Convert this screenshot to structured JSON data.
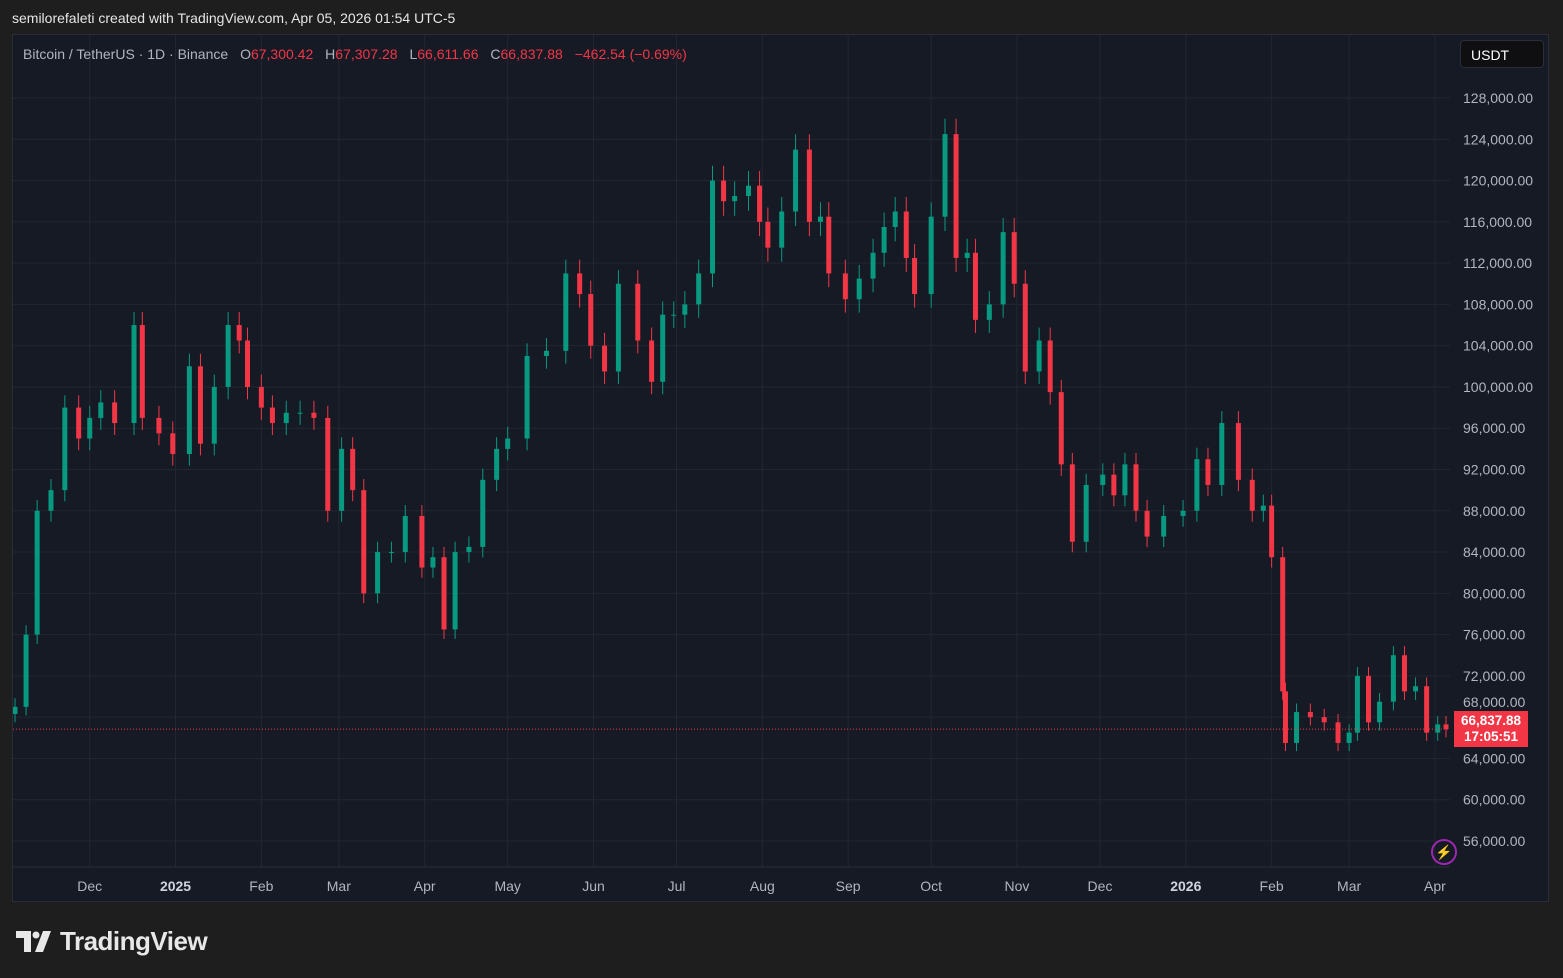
{
  "header": {
    "credit": "semilorefaleti created with TradingView.com, Apr 05, 2026 01:54 UTC-5"
  },
  "legend": {
    "symbol": "Bitcoin / TetherUS · 1D · Binance",
    "open_label": "O",
    "open": "67,300.42",
    "high_label": "H",
    "high": "67,307.28",
    "low_label": "L",
    "low": "66,611.66",
    "close_label": "C",
    "close": "66,837.88",
    "change": "−462.54 (−0.69%)"
  },
  "currency": "USDT",
  "last_price": {
    "price": "66,837.88",
    "countdown": "17:05:51"
  },
  "brand": {
    "name": "TradingView"
  },
  "colors": {
    "up": "#089981",
    "down": "#f23645",
    "background": "#161a25",
    "grid": "#222631"
  },
  "chart_data": {
    "type": "candlestick",
    "interval": "1D",
    "ylim": [
      54000,
      130000
    ],
    "xlim": [
      "2024-11-04",
      "2026-04-05"
    ],
    "y_ticks": [
      "128,000.00",
      "124,000.00",
      "120,000.00",
      "116,000.00",
      "112,000.00",
      "108,000.00",
      "104,000.00",
      "100,000.00",
      "96,000.00",
      "92,000.00",
      "88,000.00",
      "84,000.00",
      "80,000.00",
      "76,000.00",
      "72,000.00",
      "68,000.00",
      "64,000.00",
      "60,000.00",
      "56,000.00"
    ],
    "x_ticks": [
      {
        "label": "Dec",
        "date": "2024-12-01"
      },
      {
        "label": "2025",
        "date": "2025-01-01",
        "bold": true
      },
      {
        "label": "Feb",
        "date": "2025-02-01"
      },
      {
        "label": "Mar",
        "date": "2025-03-01"
      },
      {
        "label": "Apr",
        "date": "2025-04-01"
      },
      {
        "label": "May",
        "date": "2025-05-01"
      },
      {
        "label": "Jun",
        "date": "2025-06-01"
      },
      {
        "label": "Jul",
        "date": "2025-07-01"
      },
      {
        "label": "Aug",
        "date": "2025-08-01"
      },
      {
        "label": "Sep",
        "date": "2025-09-01"
      },
      {
        "label": "Oct",
        "date": "2025-10-01"
      },
      {
        "label": "Nov",
        "date": "2025-11-01"
      },
      {
        "label": "Dec",
        "date": "2025-12-01"
      },
      {
        "label": "2026",
        "date": "2026-01-01",
        "bold": true
      },
      {
        "label": "Feb",
        "date": "2026-02-01"
      },
      {
        "label": "Mar",
        "date": "2026-03-01"
      },
      {
        "label": "Apr",
        "date": "2026-04-01"
      }
    ],
    "last_close": 66837.88,
    "closes_approx": [
      [
        "2024-11-04",
        69000
      ],
      [
        "2024-11-08",
        76000
      ],
      [
        "2024-11-12",
        88000
      ],
      [
        "2024-11-17",
        90000
      ],
      [
        "2024-11-22",
        98000
      ],
      [
        "2024-11-27",
        95000
      ],
      [
        "2024-12-01",
        97000
      ],
      [
        "2024-12-05",
        98500
      ],
      [
        "2024-12-10",
        96500
      ],
      [
        "2024-12-17",
        106000
      ],
      [
        "2024-12-20",
        97000
      ],
      [
        "2024-12-26",
        95500
      ],
      [
        "2024-12-31",
        93500
      ],
      [
        "2025-01-06",
        102000
      ],
      [
        "2025-01-10",
        94500
      ],
      [
        "2025-01-15",
        100000
      ],
      [
        "2025-01-20",
        106000
      ],
      [
        "2025-01-24",
        104500
      ],
      [
        "2025-01-27",
        100000
      ],
      [
        "2025-02-01",
        98000
      ],
      [
        "2025-02-05",
        96500
      ],
      [
        "2025-02-10",
        97500
      ],
      [
        "2025-02-15",
        97500
      ],
      [
        "2025-02-20",
        97000
      ],
      [
        "2025-02-25",
        88000
      ],
      [
        "2025-03-02",
        94000
      ],
      [
        "2025-03-06",
        90000
      ],
      [
        "2025-03-10",
        80000
      ],
      [
        "2025-03-15",
        84000
      ],
      [
        "2025-03-20",
        84000
      ],
      [
        "2025-03-25",
        87500
      ],
      [
        "2025-03-31",
        82500
      ],
      [
        "2025-04-04",
        83500
      ],
      [
        "2025-04-08",
        76500
      ],
      [
        "2025-04-12",
        84000
      ],
      [
        "2025-04-17",
        84500
      ],
      [
        "2025-04-22",
        91000
      ],
      [
        "2025-04-27",
        94000
      ],
      [
        "2025-05-01",
        95000
      ],
      [
        "2025-05-08",
        103000
      ],
      [
        "2025-05-15",
        103500
      ],
      [
        "2025-05-22",
        111000
      ],
      [
        "2025-05-27",
        109000
      ],
      [
        "2025-05-31",
        104000
      ],
      [
        "2025-06-05",
        101500
      ],
      [
        "2025-06-10",
        110000
      ],
      [
        "2025-06-17",
        104500
      ],
      [
        "2025-06-22",
        100500
      ],
      [
        "2025-06-26",
        107000
      ],
      [
        "2025-06-30",
        107000
      ],
      [
        "2025-07-04",
        108000
      ],
      [
        "2025-07-09",
        111000
      ],
      [
        "2025-07-14",
        120000
      ],
      [
        "2025-07-18",
        118000
      ],
      [
        "2025-07-22",
        118500
      ],
      [
        "2025-07-27",
        119500
      ],
      [
        "2025-07-31",
        116000
      ],
      [
        "2025-08-03",
        113500
      ],
      [
        "2025-08-08",
        117000
      ],
      [
        "2025-08-13",
        123000
      ],
      [
        "2025-08-18",
        116000
      ],
      [
        "2025-08-22",
        116500
      ],
      [
        "2025-08-25",
        111000
      ],
      [
        "2025-08-31",
        108500
      ],
      [
        "2025-09-05",
        110500
      ],
      [
        "2025-09-10",
        113000
      ],
      [
        "2025-09-14",
        115500
      ],
      [
        "2025-09-18",
        117000
      ],
      [
        "2025-09-22",
        112500
      ],
      [
        "2025-09-25",
        109000
      ],
      [
        "2025-10-01",
        116500
      ],
      [
        "2025-10-06",
        124500
      ],
      [
        "2025-10-10",
        112500
      ],
      [
        "2025-10-14",
        113000
      ],
      [
        "2025-10-17",
        106500
      ],
      [
        "2025-10-22",
        108000
      ],
      [
        "2025-10-27",
        115000
      ],
      [
        "2025-10-31",
        110000
      ],
      [
        "2025-11-04",
        101500
      ],
      [
        "2025-11-09",
        104500
      ],
      [
        "2025-11-13",
        99500
      ],
      [
        "2025-11-17",
        92500
      ],
      [
        "2025-11-21",
        85000
      ],
      [
        "2025-11-26",
        90500
      ],
      [
        "2025-12-02",
        91500
      ],
      [
        "2025-12-06",
        89500
      ],
      [
        "2025-12-10",
        92500
      ],
      [
        "2025-12-14",
        88000
      ],
      [
        "2025-12-18",
        85500
      ],
      [
        "2025-12-24",
        87500
      ],
      [
        "2025-12-31",
        88000
      ],
      [
        "2026-01-05",
        93000
      ],
      [
        "2026-01-09",
        90500
      ],
      [
        "2026-01-14",
        96500
      ],
      [
        "2026-01-20",
        91000
      ],
      [
        "2026-01-25",
        88000
      ],
      [
        "2026-01-29",
        88500
      ],
      [
        "2026-02-01",
        83500
      ],
      [
        "2026-02-05",
        70500
      ],
      [
        "2026-02-06",
        65500
      ],
      [
        "2026-02-10",
        68500
      ],
      [
        "2026-02-15",
        68000
      ],
      [
        "2026-02-20",
        67500
      ],
      [
        "2026-02-25",
        65500
      ],
      [
        "2026-03-01",
        66500
      ],
      [
        "2026-03-04",
        72000
      ],
      [
        "2026-03-08",
        67500
      ],
      [
        "2026-03-12",
        69500
      ],
      [
        "2026-03-17",
        74000
      ],
      [
        "2026-03-21",
        70500
      ],
      [
        "2026-03-25",
        71000
      ],
      [
        "2026-03-29",
        66500
      ],
      [
        "2026-04-02",
        67300
      ],
      [
        "2026-04-05",
        66837.88
      ]
    ]
  }
}
